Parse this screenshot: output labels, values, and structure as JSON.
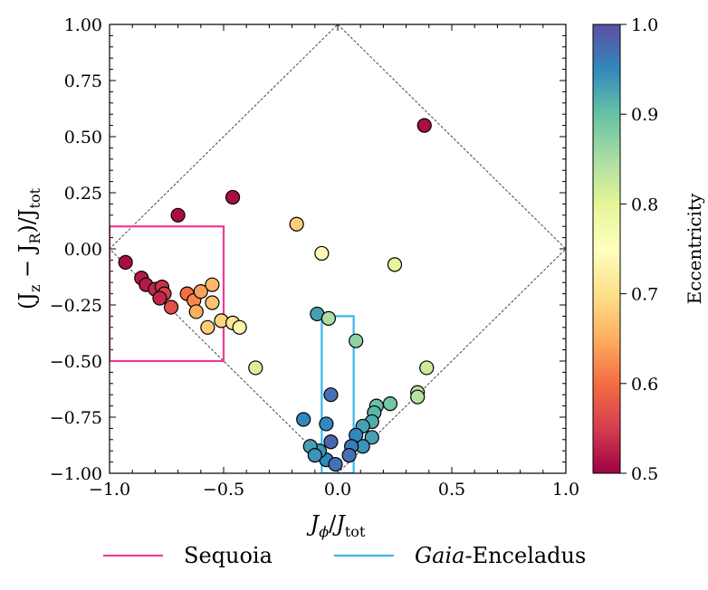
{
  "chart_data": {
    "type": "scatter",
    "xlim": [
      -1.0,
      1.0
    ],
    "ylim": [
      -1.0,
      1.0
    ],
    "xticks": [
      "−1.0",
      "−0.5",
      "0.0",
      "0.5",
      "1.0"
    ],
    "yticks": [
      "−1.00",
      "−0.75",
      "−0.50",
      "−0.25",
      "0.00",
      "0.25",
      "0.50",
      "0.75",
      "1.00"
    ],
    "xlabel": {
      "main": "J",
      "sub": "ϕ",
      "tot": "tot"
    },
    "ylabel": {
      "open": "(J",
      "z": "z",
      "minus": " − J",
      "R": "R",
      "close": ")/J",
      "tot": "tot"
    },
    "colorbar": {
      "label": "Eccentricity",
      "range": [
        0.5,
        1.0
      ],
      "ticks": [
        "0.5",
        "0.6",
        "0.7",
        "0.8",
        "0.9",
        "1.0"
      ],
      "colormap": "Spectral"
    },
    "grid": false,
    "diamond_boundary": true,
    "regions": [
      {
        "name": "Sequoia",
        "color": "#ee3a96",
        "x": [
          -1.0,
          -0.5
        ],
        "y": [
          -0.5,
          0.1
        ]
      },
      {
        "name": "Gaia-Enceladus",
        "color": "#3ab6ee",
        "x": [
          -0.07,
          0.07
        ],
        "y": [
          -1.0,
          -0.3
        ]
      }
    ],
    "legend": {
      "placement": "bottom",
      "entries": [
        {
          "text": "Sequoia",
          "color": "#ee3a96",
          "italic": "",
          "rest": "Sequoia"
        },
        {
          "text": "Gaia-Enceladus",
          "color": "#3ab6ee",
          "italic": "Gaia",
          "rest": "-Enceladus"
        }
      ]
    },
    "points": [
      {
        "x": 0.38,
        "y": 0.55,
        "e": 0.51
      },
      {
        "x": -0.46,
        "y": 0.23,
        "e": 0.51
      },
      {
        "x": -0.7,
        "y": 0.15,
        "e": 0.51
      },
      {
        "x": -0.18,
        "y": 0.11,
        "e": 0.68
      },
      {
        "x": -0.07,
        "y": -0.02,
        "e": 0.74
      },
      {
        "x": 0.25,
        "y": -0.07,
        "e": 0.8
      },
      {
        "x": -0.93,
        "y": -0.06,
        "e": 0.51
      },
      {
        "x": -0.86,
        "y": -0.13,
        "e": 0.52
      },
      {
        "x": -0.84,
        "y": -0.16,
        "e": 0.52
      },
      {
        "x": -0.8,
        "y": -0.18,
        "e": 0.53
      },
      {
        "x": -0.77,
        "y": -0.17,
        "e": 0.54
      },
      {
        "x": -0.76,
        "y": -0.2,
        "e": 0.55
      },
      {
        "x": -0.78,
        "y": -0.22,
        "e": 0.53
      },
      {
        "x": -0.73,
        "y": -0.26,
        "e": 0.57
      },
      {
        "x": -0.66,
        "y": -0.2,
        "e": 0.6
      },
      {
        "x": -0.63,
        "y": -0.23,
        "e": 0.62
      },
      {
        "x": -0.6,
        "y": -0.19,
        "e": 0.64
      },
      {
        "x": -0.62,
        "y": -0.28,
        "e": 0.65
      },
      {
        "x": -0.55,
        "y": -0.16,
        "e": 0.66
      },
      {
        "x": -0.55,
        "y": -0.24,
        "e": 0.67
      },
      {
        "x": -0.57,
        "y": -0.35,
        "e": 0.68
      },
      {
        "x": -0.51,
        "y": -0.32,
        "e": 0.69
      },
      {
        "x": -0.46,
        "y": -0.33,
        "e": 0.71
      },
      {
        "x": -0.43,
        "y": -0.35,
        "e": 0.73
      },
      {
        "x": -0.36,
        "y": -0.53,
        "e": 0.81
      },
      {
        "x": -0.09,
        "y": -0.29,
        "e": 0.93
      },
      {
        "x": -0.04,
        "y": -0.31,
        "e": 0.85
      },
      {
        "x": 0.08,
        "y": -0.41,
        "e": 0.87
      },
      {
        "x": 0.39,
        "y": -0.53,
        "e": 0.82
      },
      {
        "x": 0.35,
        "y": -0.64,
        "e": 0.84
      },
      {
        "x": 0.35,
        "y": -0.66,
        "e": 0.84
      },
      {
        "x": 0.23,
        "y": -0.69,
        "e": 0.89
      },
      {
        "x": 0.17,
        "y": -0.7,
        "e": 0.9
      },
      {
        "x": 0.16,
        "y": -0.73,
        "e": 0.91
      },
      {
        "x": 0.15,
        "y": -0.77,
        "e": 0.92
      },
      {
        "x": 0.11,
        "y": -0.79,
        "e": 0.93
      },
      {
        "x": 0.15,
        "y": -0.84,
        "e": 0.93
      },
      {
        "x": 0.11,
        "y": -0.88,
        "e": 0.94
      },
      {
        "x": 0.08,
        "y": -0.83,
        "e": 0.95
      },
      {
        "x": 0.06,
        "y": -0.88,
        "e": 0.96
      },
      {
        "x": 0.05,
        "y": -0.92,
        "e": 0.97
      },
      {
        "x": -0.03,
        "y": -0.65,
        "e": 0.97
      },
      {
        "x": -0.05,
        "y": -0.78,
        "e": 0.95
      },
      {
        "x": -0.03,
        "y": -0.86,
        "e": 0.98
      },
      {
        "x": -0.05,
        "y": -0.94,
        "e": 0.95
      },
      {
        "x": -0.01,
        "y": -0.96,
        "e": 0.97
      },
      {
        "x": -0.08,
        "y": -0.9,
        "e": 0.94
      },
      {
        "x": -0.12,
        "y": -0.88,
        "e": 0.93
      },
      {
        "x": -0.15,
        "y": -0.76,
        "e": 0.95
      },
      {
        "x": -0.1,
        "y": -0.92,
        "e": 0.94
      }
    ]
  }
}
